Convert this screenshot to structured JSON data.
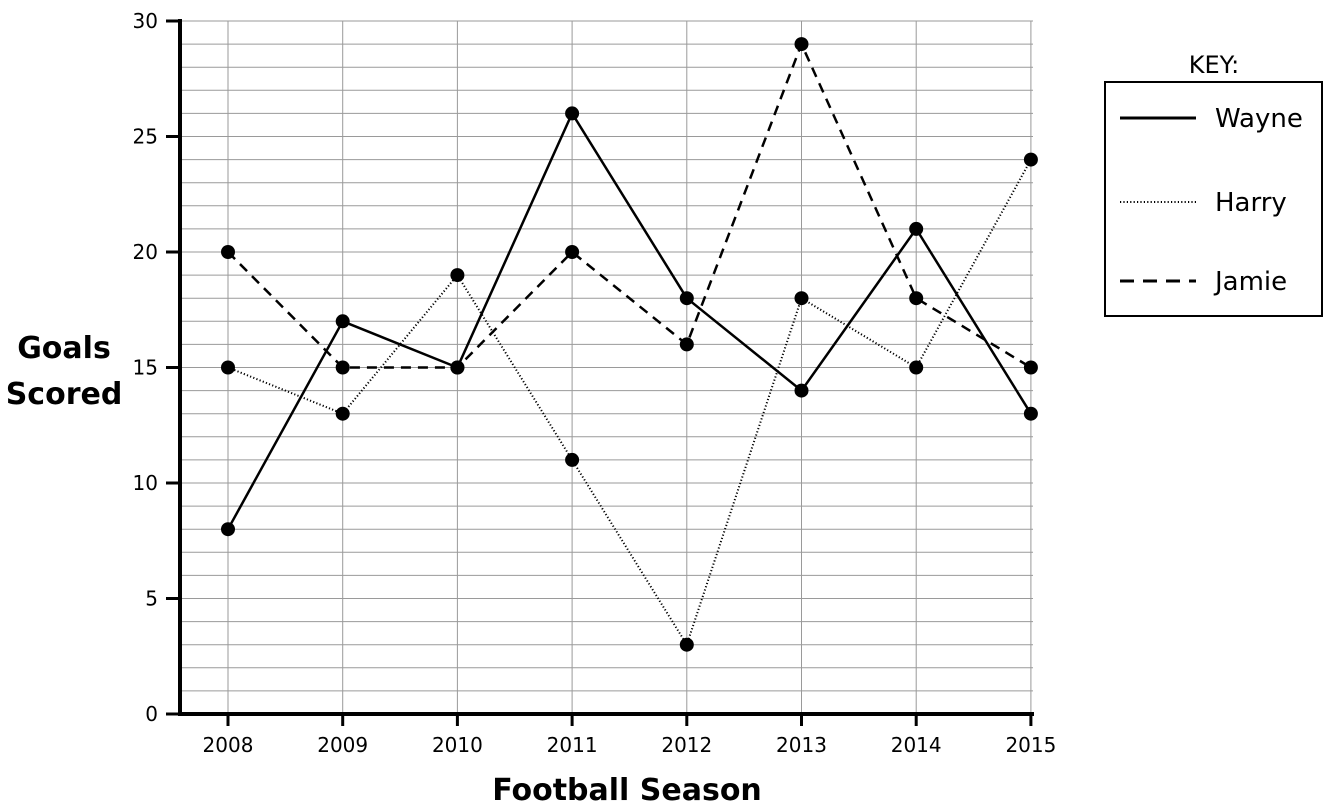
{
  "chart_data": {
    "type": "line",
    "categories": [
      "2008",
      "2009",
      "2010",
      "2011",
      "2012",
      "2013",
      "2014",
      "2015"
    ],
    "series": [
      {
        "name": "Wayne",
        "values": [
          8,
          17,
          15,
          26,
          18,
          14,
          21,
          13
        ],
        "style": "solid"
      },
      {
        "name": "Harry",
        "values": [
          15,
          13,
          19,
          11,
          3,
          18,
          15,
          24
        ],
        "style": "dotted"
      },
      {
        "name": "Jamie",
        "values": [
          20,
          15,
          15,
          20,
          16,
          29,
          18,
          15
        ],
        "style": "dashed"
      }
    ],
    "xlabel": "Football Season",
    "ylabel_line1": "Goals",
    "ylabel_line2": "Scored",
    "ylim": [
      0,
      30
    ],
    "y_ticks": [
      "0",
      "5",
      "10",
      "15",
      "20",
      "25",
      "30"
    ],
    "grid": true,
    "legend": {
      "title": "KEY:",
      "placement": "right"
    }
  }
}
